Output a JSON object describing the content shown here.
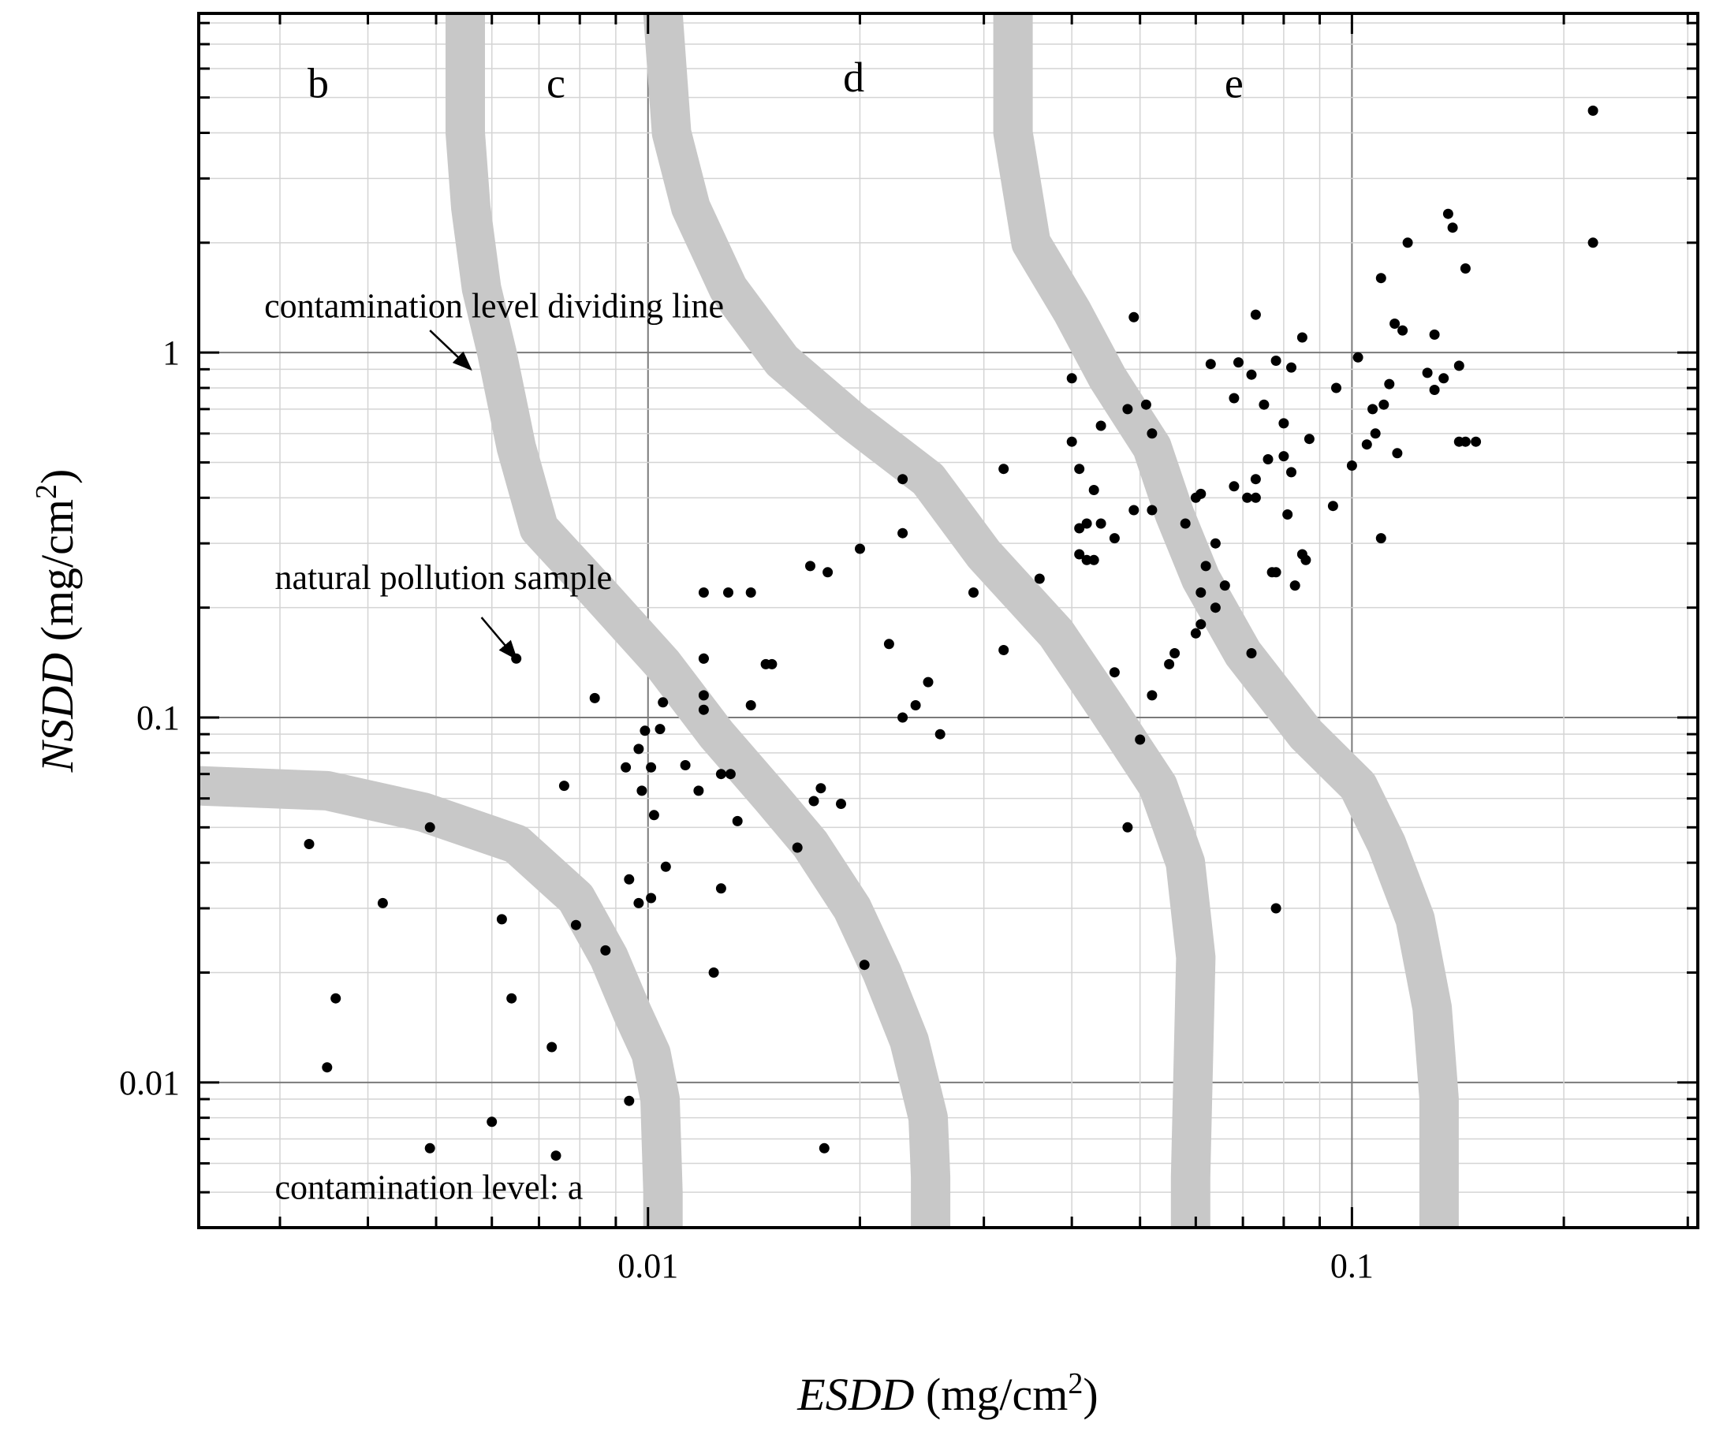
{
  "chart_data": {
    "type": "scatter",
    "xscale": "log",
    "yscale": "log",
    "xlim": [
      0.0023,
      0.31
    ],
    "ylim": [
      0.004,
      8.5
    ],
    "x_ticks": [
      {
        "value": 0.01,
        "label": "0.01"
      },
      {
        "value": 0.1,
        "label": "0.1"
      }
    ],
    "y_ticks": [
      {
        "value": 0.01,
        "label": "0.01"
      },
      {
        "value": 0.1,
        "label": "0.1"
      },
      {
        "value": 1,
        "label": "1"
      }
    ],
    "xlabel": {
      "italic": "ESDD",
      "unit_main": " (mg/cm",
      "unit_sup": "2",
      "unit_end": ")"
    },
    "ylabel": {
      "italic": "NSDD",
      "unit_main": " (mg/cm",
      "unit_sup": "2",
      "unit_end": ")"
    },
    "grid": true,
    "region_labels": [
      {
        "text": "b",
        "x": 0.0034,
        "y": 5.0
      },
      {
        "text": "c",
        "x": 0.0074,
        "y": 5.0
      },
      {
        "text": "d",
        "x": 0.0196,
        "y": 5.2
      },
      {
        "text": "e",
        "x": 0.068,
        "y": 5.0
      }
    ],
    "annotations": [
      {
        "text": "contamination level dividing line",
        "text_x": 0.00285,
        "text_y": 1.25,
        "arrow_from": [
          0.0049,
          1.15
        ],
        "arrow_to": [
          0.0056,
          0.9
        ]
      },
      {
        "text": "natural pollution sample",
        "text_x": 0.00295,
        "text_y": 0.225,
        "arrow_from": [
          0.0058,
          0.188
        ],
        "arrow_to": [
          0.0065,
          0.145
        ]
      },
      {
        "text": "contamination level: a",
        "text_x": 0.00295,
        "text_y": 0.0048
      }
    ],
    "dividing_lines": [
      {
        "name": "a-b",
        "points": [
          [
            0.0023,
            0.065
          ],
          [
            0.0035,
            0.063
          ],
          [
            0.0048,
            0.055
          ],
          [
            0.0065,
            0.045
          ],
          [
            0.0079,
            0.032
          ],
          [
            0.0088,
            0.022
          ],
          [
            0.0095,
            0.0155
          ],
          [
            0.0101,
            0.012
          ],
          [
            0.0104,
            0.009
          ],
          [
            0.0105,
            0.005
          ],
          [
            0.0105,
            0.004
          ]
        ]
      },
      {
        "name": "b-c",
        "points": [
          [
            0.0055,
            8.5
          ],
          [
            0.0055,
            4.0
          ],
          [
            0.0056,
            2.5
          ],
          [
            0.0058,
            1.5
          ],
          [
            0.0061,
            1.0
          ],
          [
            0.0065,
            0.55
          ],
          [
            0.007,
            0.33
          ],
          [
            0.0085,
            0.22
          ],
          [
            0.0105,
            0.14
          ],
          [
            0.0125,
            0.09
          ],
          [
            0.015,
            0.06
          ],
          [
            0.017,
            0.045
          ],
          [
            0.0195,
            0.03
          ],
          [
            0.0215,
            0.02
          ],
          [
            0.0235,
            0.013
          ],
          [
            0.025,
            0.008
          ],
          [
            0.0252,
            0.0055
          ],
          [
            0.0252,
            0.004
          ]
        ]
      },
      {
        "name": "c-d",
        "points": [
          [
            0.0105,
            8.5
          ],
          [
            0.0108,
            4.0
          ],
          [
            0.0115,
            2.5
          ],
          [
            0.013,
            1.5
          ],
          [
            0.0155,
            0.95
          ],
          [
            0.0195,
            0.65
          ],
          [
            0.025,
            0.45
          ],
          [
            0.03,
            0.28
          ],
          [
            0.038,
            0.17
          ],
          [
            0.045,
            0.105
          ],
          [
            0.053,
            0.065
          ],
          [
            0.058,
            0.04
          ],
          [
            0.06,
            0.022
          ],
          [
            0.0595,
            0.011
          ],
          [
            0.059,
            0.0055
          ],
          [
            0.059,
            0.004
          ]
        ]
      },
      {
        "name": "d-e",
        "points": [
          [
            0.033,
            8.5
          ],
          [
            0.033,
            4.0
          ],
          [
            0.035,
            2.0
          ],
          [
            0.04,
            1.3
          ],
          [
            0.045,
            0.85
          ],
          [
            0.052,
            0.55
          ],
          [
            0.056,
            0.36
          ],
          [
            0.061,
            0.24
          ],
          [
            0.07,
            0.15
          ],
          [
            0.086,
            0.09
          ],
          [
            0.102,
            0.065
          ],
          [
            0.112,
            0.045
          ],
          [
            0.123,
            0.028
          ],
          [
            0.13,
            0.016
          ],
          [
            0.133,
            0.009
          ],
          [
            0.133,
            0.004
          ]
        ]
      }
    ],
    "points": [
      [
        0.22,
        4.6
      ],
      [
        0.22,
        2.0
      ],
      [
        0.137,
        2.4
      ],
      [
        0.139,
        2.2
      ],
      [
        0.145,
        1.7
      ],
      [
        0.12,
        2.0
      ],
      [
        0.11,
        1.6
      ],
      [
        0.115,
        1.2
      ],
      [
        0.118,
        1.15
      ],
      [
        0.131,
        1.12
      ],
      [
        0.142,
        0.92
      ],
      [
        0.128,
        0.88
      ],
      [
        0.135,
        0.85
      ],
      [
        0.113,
        0.82
      ],
      [
        0.131,
        0.79
      ],
      [
        0.102,
        0.97
      ],
      [
        0.095,
        0.8
      ],
      [
        0.107,
        0.7
      ],
      [
        0.111,
        0.72
      ],
      [
        0.108,
        0.6
      ],
      [
        0.116,
        0.53
      ],
      [
        0.105,
        0.56
      ],
      [
        0.1,
        0.49
      ],
      [
        0.094,
        0.38
      ],
      [
        0.11,
        0.31
      ],
      [
        0.142,
        0.57
      ],
      [
        0.145,
        0.57
      ],
      [
        0.15,
        0.57
      ],
      [
        0.085,
        1.1
      ],
      [
        0.082,
        0.91
      ],
      [
        0.078,
        0.95
      ],
      [
        0.073,
        1.27
      ],
      [
        0.069,
        0.94
      ],
      [
        0.072,
        0.87
      ],
      [
        0.068,
        0.75
      ],
      [
        0.063,
        0.93
      ],
      [
        0.075,
        0.72
      ],
      [
        0.08,
        0.64
      ],
      [
        0.087,
        0.58
      ],
      [
        0.08,
        0.52
      ],
      [
        0.076,
        0.51
      ],
      [
        0.082,
        0.47
      ],
      [
        0.073,
        0.45
      ],
      [
        0.071,
        0.4
      ],
      [
        0.068,
        0.43
      ],
      [
        0.073,
        0.4
      ],
      [
        0.081,
        0.36
      ],
      [
        0.085,
        0.28
      ],
      [
        0.077,
        0.25
      ],
      [
        0.083,
        0.23
      ],
      [
        0.086,
        0.27
      ],
      [
        0.078,
        0.25
      ],
      [
        0.061,
        0.41
      ],
      [
        0.06,
        0.4
      ],
      [
        0.058,
        0.34
      ],
      [
        0.064,
        0.3
      ],
      [
        0.062,
        0.26
      ],
      [
        0.061,
        0.22
      ],
      [
        0.064,
        0.2
      ],
      [
        0.061,
        0.18
      ],
      [
        0.06,
        0.17
      ],
      [
        0.066,
        0.23
      ],
      [
        0.072,
        0.15
      ],
      [
        0.078,
        0.03
      ],
      [
        0.049,
        1.25
      ],
      [
        0.04,
        0.85
      ],
      [
        0.048,
        0.7
      ],
      [
        0.051,
        0.72
      ],
      [
        0.052,
        0.6
      ],
      [
        0.04,
        0.57
      ],
      [
        0.044,
        0.63
      ],
      [
        0.041,
        0.48
      ],
      [
        0.043,
        0.42
      ],
      [
        0.041,
        0.33
      ],
      [
        0.042,
        0.34
      ],
      [
        0.044,
        0.34
      ],
      [
        0.041,
        0.28
      ],
      [
        0.042,
        0.27
      ],
      [
        0.043,
        0.27
      ],
      [
        0.046,
        0.31
      ],
      [
        0.049,
        0.37
      ],
      [
        0.052,
        0.37
      ],
      [
        0.056,
        0.15
      ],
      [
        0.055,
        0.14
      ],
      [
        0.052,
        0.115
      ],
      [
        0.046,
        0.133
      ],
      [
        0.036,
        0.24
      ],
      [
        0.048,
        0.05
      ],
      [
        0.05,
        0.087
      ],
      [
        0.032,
        0.48
      ],
      [
        0.023,
        0.45
      ],
      [
        0.023,
        0.32
      ],
      [
        0.029,
        0.22
      ],
      [
        0.032,
        0.153
      ],
      [
        0.022,
        0.159
      ],
      [
        0.025,
        0.125
      ],
      [
        0.024,
        0.108
      ],
      [
        0.023,
        0.1
      ],
      [
        0.026,
        0.09
      ],
      [
        0.02,
        0.29
      ],
      [
        0.018,
        0.25
      ],
      [
        0.017,
        0.26
      ],
      [
        0.012,
        0.22
      ],
      [
        0.013,
        0.22
      ],
      [
        0.014,
        0.22
      ],
      [
        0.012,
        0.145
      ],
      [
        0.012,
        0.145
      ],
      [
        0.0147,
        0.14
      ],
      [
        0.015,
        0.14
      ],
      [
        0.012,
        0.115
      ],
      [
        0.012,
        0.105
      ],
      [
        0.0105,
        0.11
      ],
      [
        0.014,
        0.108
      ],
      [
        0.0104,
        0.093
      ],
      [
        0.0099,
        0.092
      ],
      [
        0.0097,
        0.082
      ],
      [
        0.0093,
        0.073
      ],
      [
        0.0101,
        0.073
      ],
      [
        0.0113,
        0.074
      ],
      [
        0.0118,
        0.063
      ],
      [
        0.0127,
        0.07
      ],
      [
        0.0131,
        0.07
      ],
      [
        0.0098,
        0.063
      ],
      [
        0.0102,
        0.054
      ],
      [
        0.0134,
        0.052
      ],
      [
        0.0106,
        0.039
      ],
      [
        0.0094,
        0.036
      ],
      [
        0.0097,
        0.031
      ],
      [
        0.0101,
        0.032
      ],
      [
        0.0127,
        0.034
      ],
      [
        0.0124,
        0.02
      ],
      [
        0.0163,
        0.044
      ],
      [
        0.0176,
        0.064
      ],
      [
        0.0172,
        0.059
      ],
      [
        0.0188,
        0.058
      ],
      [
        0.0203,
        0.021
      ],
      [
        0.0178,
        0.0066
      ],
      [
        0.0084,
        0.113
      ],
      [
        0.0076,
        0.065
      ],
      [
        0.0065,
        0.145
      ],
      [
        0.0049,
        0.05
      ],
      [
        0.0033,
        0.045
      ],
      [
        0.0042,
        0.031
      ],
      [
        0.0062,
        0.028
      ],
      [
        0.0079,
        0.027
      ],
      [
        0.0087,
        0.023
      ],
      [
        0.0036,
        0.017
      ],
      [
        0.0064,
        0.017
      ],
      [
        0.0073,
        0.0125
      ],
      [
        0.0035,
        0.011
      ],
      [
        0.0094,
        0.0089
      ],
      [
        0.006,
        0.0078
      ],
      [
        0.0049,
        0.0066
      ],
      [
        0.0074,
        0.0063
      ]
    ]
  }
}
